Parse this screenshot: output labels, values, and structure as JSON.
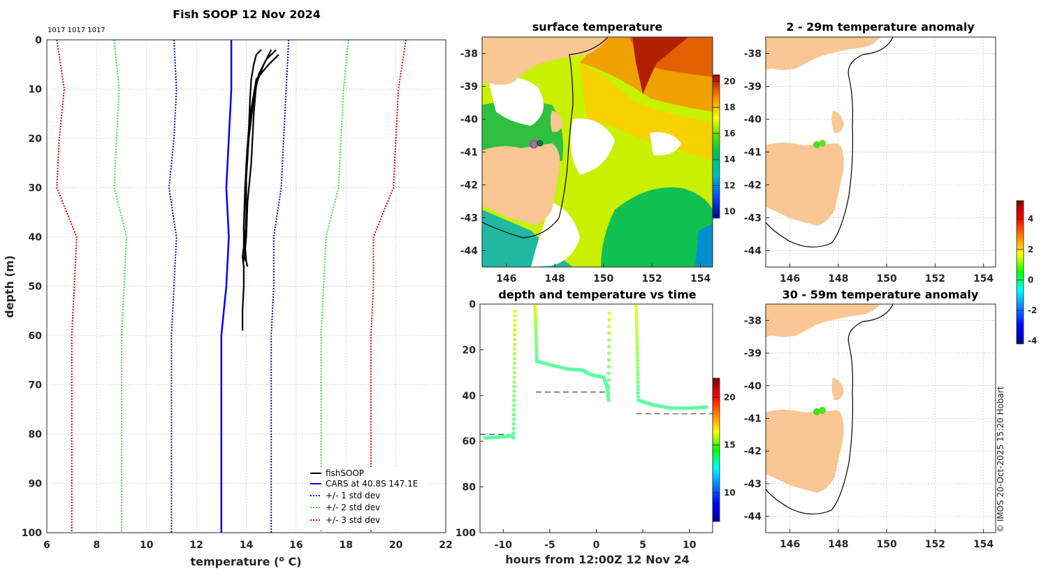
{
  "chart_data": [
    {
      "panel": "profile",
      "type": "line",
      "title": "Fish SOOP 12 Nov 2024",
      "xlabel": "temperature (",
      "xlabel_sup": "o",
      "xlabel_tail": " C)",
      "ylabel": "depth (m)",
      "xlim": [
        6,
        22
      ],
      "ylim": [
        0,
        100
      ],
      "xticks": [
        "6",
        "8",
        "10",
        "12",
        "14",
        "16",
        "18",
        "20",
        "22"
      ],
      "yticks": [
        "0",
        "10",
        "20",
        "30",
        "40",
        "50",
        "60",
        "70",
        "80",
        "90",
        "100"
      ],
      "profile_ids": "1017 1017 1017",
      "series": [
        {
          "name": "fishSOOP",
          "color": "#000000",
          "style": "solid",
          "casts": [
            {
              "depth": [
                2,
                3,
                5,
                8,
                12,
                18,
                25,
                32,
                38,
                42,
                44,
                46,
                50,
                55,
                59
              ],
              "temp": [
                14.6,
                14.4,
                14.3,
                14.2,
                14.15,
                14.1,
                14.0,
                13.95,
                13.9,
                13.9,
                13.85,
                13.9,
                13.9,
                13.85,
                13.85
              ]
            },
            {
              "depth": [
                2,
                4,
                7,
                12,
                20,
                28,
                35,
                42,
                45
              ],
              "temp": [
                15.2,
                14.8,
                14.5,
                14.3,
                14.1,
                14.0,
                14.0,
                13.95,
                14.0
              ]
            },
            {
              "depth": [
                3,
                5,
                8,
                14,
                22,
                30,
                38,
                44,
                46
              ],
              "temp": [
                15.3,
                14.9,
                14.4,
                14.2,
                14.05,
                13.95,
                13.9,
                13.95,
                14.05
              ]
            },
            {
              "depth": [
                2,
                5,
                9,
                15,
                25,
                33,
                40,
                45
              ],
              "temp": [
                15.0,
                14.7,
                14.4,
                14.3,
                14.2,
                14.05,
                14.0,
                13.9
              ]
            }
          ]
        },
        {
          "name": "CARS at 40.8S 147.1E",
          "color": "#0000ff",
          "style": "solid",
          "depth": [
            0,
            10,
            20,
            30,
            40,
            50,
            60,
            100
          ],
          "temp": [
            13.4,
            13.4,
            13.3,
            13.2,
            13.3,
            13.2,
            13.0,
            13.0
          ]
        },
        {
          "name": "+/- 1 std dev",
          "color": "#0000cc",
          "style": "dotted",
          "lower": {
            "depth": [
              0,
              10,
              20,
              30,
              40,
              50,
              60,
              100
            ],
            "temp": [
              11.1,
              11.2,
              11.1,
              10.9,
              11.2,
              11.1,
              11.0,
              11.0
            ]
          },
          "upper": {
            "depth": [
              0,
              10,
              20,
              30,
              40,
              50,
              60,
              100
            ],
            "temp": [
              15.7,
              15.6,
              15.5,
              15.4,
              15.1,
              15.1,
              15.0,
              15.0
            ]
          }
        },
        {
          "name": "+/- 2 std dev",
          "color": "#33dd33",
          "style": "dotted",
          "lower": {
            "depth": [
              0,
              10,
              20,
              30,
              40,
              50,
              60,
              100
            ],
            "temp": [
              8.7,
              8.9,
              8.8,
              8.7,
              9.2,
              9.1,
              9.0,
              9.0
            ]
          },
          "upper": {
            "depth": [
              0,
              10,
              20,
              30,
              40,
              50,
              60,
              100
            ],
            "temp": [
              18.1,
              17.9,
              17.8,
              17.7,
              17.2,
              17.1,
              17.0,
              17.0
            ]
          }
        },
        {
          "name": "+/- 3 std dev",
          "color": "#dd0000",
          "style": "dotted",
          "lower": {
            "depth": [
              0,
              10,
              20,
              30,
              40,
              50,
              60,
              100
            ],
            "temp": [
              6.4,
              6.7,
              6.5,
              6.4,
              7.2,
              7.1,
              7.0,
              7.0
            ]
          },
          "upper": {
            "depth": [
              0,
              10,
              20,
              30,
              40,
              50,
              60,
              100
            ],
            "temp": [
              20.4,
              20.1,
              20.0,
              19.9,
              19.1,
              19.1,
              19.0,
              19.0
            ]
          }
        }
      ]
    },
    {
      "panel": "sst_map",
      "type": "heatmap",
      "title": "surface temperature",
      "xlim": [
        145,
        154.5
      ],
      "ylim": [
        -44.5,
        -37.5
      ],
      "xticks": [
        "146",
        "148",
        "150",
        "152",
        "154"
      ],
      "yticks": [
        "-38",
        "-39",
        "-40",
        "-41",
        "-42",
        "-43",
        "-44"
      ],
      "colorbar": {
        "range": [
          9.5,
          20.5
        ],
        "ticks": [
          "10",
          "12",
          "14",
          "16",
          "18",
          "20"
        ]
      },
      "markers": [
        {
          "label": "operation area",
          "lon": 147.1,
          "lat": -40.8,
          "color": "#cc33cc"
        },
        {
          "label": "profile",
          "lon": 147.4,
          "lat": -40.8,
          "color": "#008040"
        }
      ]
    },
    {
      "panel": "depth_time",
      "type": "scatter",
      "title": "depth and temperature vs time",
      "xlabel": "hours from 12:00Z 12 Nov 24",
      "xlim": [
        -12.5,
        12.5
      ],
      "ylim": [
        0,
        100
      ],
      "xticks": [
        "-10",
        "-5",
        "0",
        "5",
        "10"
      ],
      "yticks": [
        "0",
        "20",
        "40",
        "60",
        "80",
        "100"
      ],
      "colorbar": {
        "range": [
          7,
          22
        ],
        "ticks": [
          "10",
          "15",
          "20"
        ]
      },
      "segments": [
        {
          "hours": [
            -12.0,
            -11.0,
            -10.0,
            -9.2,
            -8.9,
            -8.8,
            -8.75
          ],
          "depth": [
            58.5,
            58.3,
            58.0,
            57.5,
            58.5,
            30,
            1
          ],
          "temp": [
            14.0,
            14.0,
            14.0,
            14.0,
            14.0,
            15,
            16
          ]
        },
        {
          "hours": [
            -6.6,
            -6.5,
            -6.4,
            -5.0,
            -3.0,
            -1.5,
            -0.8,
            0.0,
            0.8,
            1.2,
            1.3,
            1.4
          ],
          "depth": [
            1,
            10,
            25,
            26.5,
            28.5,
            28.8,
            30.5,
            31.5,
            32,
            37,
            42,
            1
          ],
          "temp": [
            16,
            15,
            14,
            14,
            14,
            14,
            14,
            14,
            14,
            14,
            14,
            16
          ]
        },
        {
          "hours": [
            4.3,
            4.4,
            4.5,
            6.0,
            8.0,
            10.0,
            12.0
          ],
          "depth": [
            1,
            20,
            42,
            44,
            45.5,
            45.5,
            45.0
          ],
          "temp": [
            16,
            15,
            14,
            14,
            14,
            14,
            14
          ]
        }
      ],
      "bottom_depths": [
        {
          "from": -12.5,
          "to": -9.0,
          "depth": 57
        },
        {
          "from": -6.5,
          "to": 1.3,
          "depth": 38.5
        },
        {
          "from": 4.3,
          "to": 12.5,
          "depth": 48
        }
      ]
    },
    {
      "panel": "anomaly_map_upper",
      "type": "scatter",
      "title": "2 - 29m temperature anomaly",
      "xlim": [
        145,
        154.5
      ],
      "ylim": [
        -44.5,
        -37.5
      ],
      "xticks": [
        "146",
        "148",
        "150",
        "152",
        "154"
      ],
      "yticks": [
        "-38",
        "-39",
        "-40",
        "-41",
        "-42",
        "-43",
        "-44"
      ],
      "points": [
        {
          "lon": 147.1,
          "lat": -40.85,
          "anomaly": 0.3
        },
        {
          "lon": 147.3,
          "lat": -40.8,
          "anomaly": 0.5
        }
      ]
    },
    {
      "panel": "anomaly_map_lower",
      "type": "scatter",
      "title": "30 - 59m temperature anomaly",
      "xlim": [
        145,
        154.5
      ],
      "ylim": [
        -44.5,
        -37.5
      ],
      "xticks": [
        "146",
        "148",
        "150",
        "152",
        "154"
      ],
      "yticks": [
        "-38",
        "-39",
        "-40",
        "-41",
        "-42",
        "-43",
        "-44"
      ],
      "points": [
        {
          "lon": 147.1,
          "lat": -40.85,
          "anomaly": 0.2
        },
        {
          "lon": 147.3,
          "lat": -40.8,
          "anomaly": 0.4
        }
      ]
    },
    {
      "panel": "anomaly_colorbar",
      "type": "heatmap",
      "range": [
        -4.2,
        5.2
      ],
      "ticks": [
        "4",
        "2",
        "0",
        "-2",
        "-4"
      ]
    }
  ],
  "land_color": "#f8c794",
  "legend": [
    "fishSOOP",
    "CARS at 40.8S 147.1E",
    "+/- 1 std dev",
    "+/- 2 std dev",
    "+/- 3 std dev"
  ],
  "credit": "© IMOS 20-Oct-2025 15:20 Hobart"
}
